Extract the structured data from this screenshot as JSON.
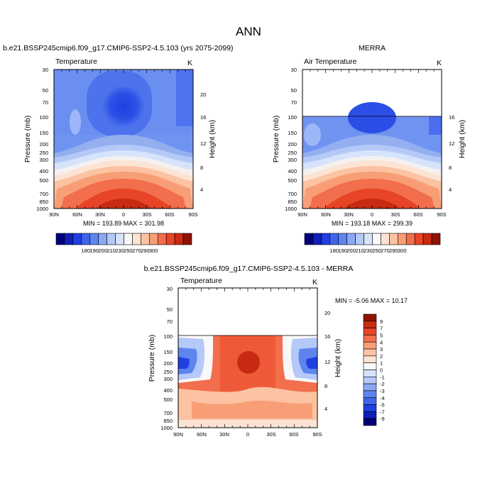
{
  "figure": {
    "title": "ANN"
  },
  "chart_data": [
    {
      "type": "heatmap",
      "title": "b.e21.BSSP245cmip6.f09_g17.CMIP6-SSP2-4.5.103 (yrs 2075-2099)",
      "subtitle_left": "Temperature",
      "subtitle_right": "K",
      "ylabel": "Pressure (mb)",
      "ylabel_right": "Height (km)",
      "x_ticks": [
        "90N",
        "60N",
        "30N",
        "0",
        "30S",
        "60S",
        "90S"
      ],
      "y_ticks": [
        "30",
        "50",
        "70",
        "100",
        "150",
        "200",
        "250",
        "300",
        "400",
        "500",
        "700",
        "850",
        "1000"
      ],
      "y_ticks_right": [
        "20",
        "16",
        "12",
        "8",
        "4"
      ],
      "stats": "MIN = 193.89   MAX = 301.98",
      "colorbar": {
        "orientation": "horizontal",
        "labels": [
          "180",
          "190",
          "200",
          "210",
          "230",
          "250",
          "270",
          "290",
          "300"
        ],
        "colors": [
          "#00007a",
          "#0f1fb7",
          "#1f3fe0",
          "#3f66ea",
          "#5e85ee",
          "#8aa8f5",
          "#b4c9f8",
          "#d6e3fb",
          "#f8f8f8",
          "#fde3d3",
          "#fbc3a2",
          "#f89e76",
          "#f36e4c",
          "#e84426",
          "#c72b12",
          "#8f1303"
        ]
      },
      "data_top_hpa": 30
    },
    {
      "type": "heatmap",
      "title": "MERRA",
      "subtitle_left": "Air Temperature",
      "subtitle_right": "K",
      "ylabel": "Pressure (mb)",
      "ylabel_right": "Height (km)",
      "x_ticks": [
        "90N",
        "60N",
        "30N",
        "0",
        "30S",
        "60S",
        "90S"
      ],
      "y_ticks": [
        "30",
        "50",
        "70",
        "100",
        "150",
        "200",
        "250",
        "300",
        "400",
        "500",
        "700",
        "850",
        "1000"
      ],
      "y_ticks_right": [
        "16",
        "12",
        "8",
        "4"
      ],
      "stats": "MIN = 193.18   MAX = 299.39",
      "colorbar": {
        "orientation": "horizontal",
        "labels": [
          "180",
          "190",
          "200",
          "210",
          "230",
          "250",
          "270",
          "290",
          "300"
        ],
        "colors": [
          "#00007a",
          "#0f1fb7",
          "#1f3fe0",
          "#3f66ea",
          "#5e85ee",
          "#8aa8f5",
          "#b4c9f8",
          "#d6e3fb",
          "#f8f8f8",
          "#fde3d3",
          "#fbc3a2",
          "#f89e76",
          "#f36e4c",
          "#e84426",
          "#c72b12",
          "#8f1303"
        ]
      },
      "data_top_hpa": 100
    },
    {
      "type": "heatmap",
      "title": "b.e21.BSSP245cmip6.f09_g17.CMIP6-SSP2-4.5.103 - MERRA",
      "subtitle_left": "Temperature",
      "subtitle_right": "K",
      "ylabel": "Pressure (mb)",
      "ylabel_right": "Height (km)",
      "x_ticks": [
        "90N",
        "60N",
        "30N",
        "0",
        "30S",
        "60S",
        "90S"
      ],
      "y_ticks": [
        "30",
        "50",
        "70",
        "100",
        "150",
        "200",
        "250",
        "300",
        "400",
        "500",
        "700",
        "850",
        "1000"
      ],
      "y_ticks_right": [
        "20",
        "16",
        "12",
        "8",
        "4"
      ],
      "stats": "MIN =  -5.06  MAX =  10.17",
      "colorbar": {
        "orientation": "vertical",
        "labels": [
          "9",
          "7",
          "5",
          "4",
          "3",
          "2",
          "1",
          "0",
          "-1",
          "-2",
          "-3",
          "-4",
          "-5",
          "-7",
          "-9"
        ],
        "colors": [
          "#8f1303",
          "#c72b12",
          "#e84426",
          "#f36e4c",
          "#f89e76",
          "#fbc3a2",
          "#fde3d3",
          "#f8f8f8",
          "#d6e3fb",
          "#b4c9f8",
          "#8aa8f5",
          "#5e85ee",
          "#3f66ea",
          "#1f3fe0",
          "#0f1fb7",
          "#00007a"
        ]
      },
      "data_top_hpa": 100
    }
  ]
}
